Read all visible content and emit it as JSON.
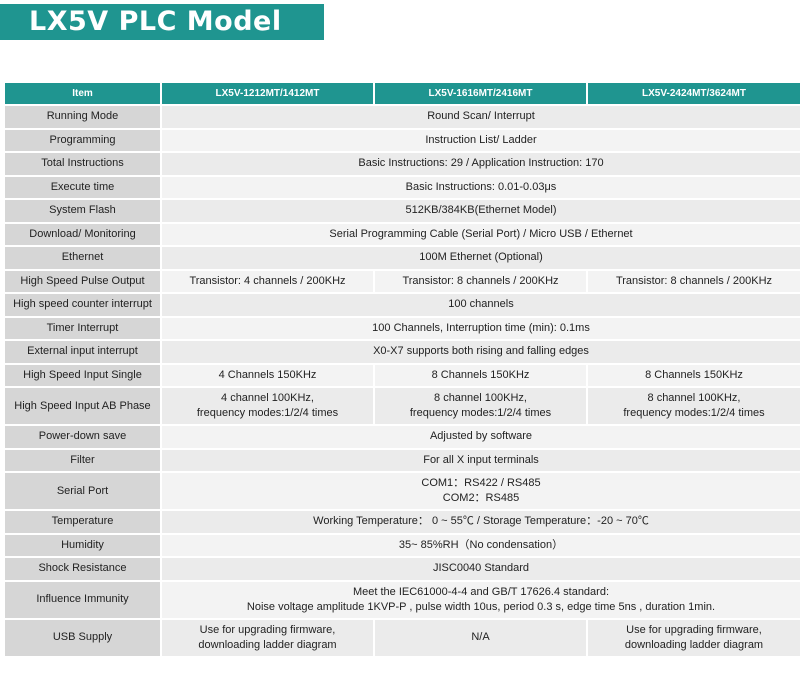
{
  "title": "LX5V PLC Model",
  "colors": {
    "accent": "#1f9590",
    "item_cell": "#d6d6d6",
    "value_cell_a": "#ebebeb",
    "value_cell_b": "#f3f3f3"
  },
  "table": {
    "headers": [
      "Item",
      "LX5V-1212MT/1412MT",
      "LX5V-1616MT/2416MT",
      "LX5V-2424MT/3624MT"
    ],
    "rows": [
      {
        "item": "Running Mode",
        "values": [
          "Round Scan/ Interrupt"
        ]
      },
      {
        "item": "Programming",
        "values": [
          "Instruction List/ Ladder"
        ]
      },
      {
        "item": "Total Instructions",
        "values": [
          "Basic Instructions: 29 / Application Instruction: 170"
        ]
      },
      {
        "item": "Execute time",
        "values": [
          "Basic Instructions: 0.01-0.03μs"
        ]
      },
      {
        "item": "System Flash",
        "values": [
          "512KB/384KB(Ethernet Model)"
        ]
      },
      {
        "item": "Download/ Monitoring",
        "values": [
          "Serial  Programming  Cable (Serial  Port) / Micro USB / Ethernet"
        ]
      },
      {
        "item": "Ethernet",
        "values": [
          "100M Ethernet (Optional)"
        ]
      },
      {
        "item": "High Speed Pulse Output",
        "values": [
          "Transistor: 4 channels / 200KHz",
          "Transistor: 8 channels / 200KHz",
          "Transistor: 8 channels / 200KHz"
        ]
      },
      {
        "item": "High speed counter interrupt",
        "values": [
          "100 channels"
        ]
      },
      {
        "item": "Timer Interrupt",
        "values": [
          "100 Channels, Interruption time (min): 0.1ms"
        ]
      },
      {
        "item": "External input interrupt",
        "values": [
          "X0-X7 supports both rising and falling edges"
        ]
      },
      {
        "item": "High Speed Input Single",
        "values": [
          "4 Channels 150KHz",
          "8 Channels 150KHz",
          "8 Channels 150KHz"
        ]
      },
      {
        "item": "High Speed Input AB Phase",
        "values": [
          [
            "4 channel 100KHz,",
            "frequency modes:1/2/4 times"
          ],
          [
            "8 channel 100KHz,",
            "frequency modes:1/2/4 times"
          ],
          [
            "8 channel 100KHz,",
            "frequency modes:1/2/4 times"
          ]
        ]
      },
      {
        "item": "Power-down save",
        "values": [
          "Adjusted by software"
        ]
      },
      {
        "item": "Filter",
        "values": [
          "For all X input terminals"
        ]
      },
      {
        "item": "Serial Port",
        "values": [
          [
            "COM1：RS422 / RS485",
            "COM2：RS485"
          ]
        ]
      },
      {
        "item": "Temperature",
        "values": [
          "Working Temperature： 0 ~ 55℃ / Storage Temperature：-20 ~ 70℃"
        ]
      },
      {
        "item": "Humidity",
        "values": [
          "35~ 85%RH（No condensation）"
        ]
      },
      {
        "item": "Shock Resistance",
        "values": [
          "JISC0040 Standard"
        ]
      },
      {
        "item": "Influence Immunity",
        "values": [
          [
            "Meet the IEC61000-4-4 and GB/T 17626.4 standard:",
            "Noise voltage amplitude 1KVP-P , pulse width 10us, period 0.3 s, edge time 5ns , duration 1min."
          ]
        ]
      },
      {
        "item": "USB Supply",
        "values": [
          [
            "Use for upgrading firmware,",
            "downloading ladder diagram"
          ],
          [
            "N/A"
          ],
          [
            "Use for upgrading firmware,",
            "downloading ladder diagram"
          ]
        ]
      }
    ]
  }
}
